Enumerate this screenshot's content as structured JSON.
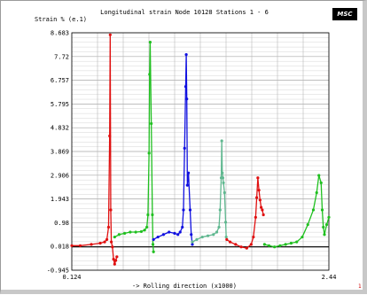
{
  "chart_data": {
    "type": "line",
    "title": "Longitudinal strain Node 10128 Stations 1 - 6",
    "ylabel": "Strain % (e.1)",
    "xlabel": "-> Rolling direction (x1000)",
    "logo_text": "MSC",
    "corner_mark": "1",
    "xlim": [
      0.124,
      2.44
    ],
    "ylim": [
      -0.945,
      8.683
    ],
    "x_tick_labels": [
      "0.124",
      "2.44"
    ],
    "y_ticks": [
      8.683,
      7.72,
      6.757,
      5.795,
      4.832,
      3.869,
      2.906,
      1.943,
      0.98,
      0.018,
      -0.945
    ],
    "grid": true,
    "series": [
      {
        "color": "#e01010",
        "x": [
          0.124,
          0.2,
          0.3,
          0.38,
          0.42,
          0.44,
          0.455,
          0.465,
          0.47,
          0.475,
          0.48,
          0.49,
          0.5,
          0.51,
          0.52,
          0.53
        ],
        "y": [
          0.05,
          0.05,
          0.1,
          0.15,
          0.2,
          0.3,
          0.8,
          4.5,
          8.6,
          1.5,
          0.2,
          0.0,
          -0.5,
          -0.7,
          -0.55,
          -0.4
        ]
      },
      {
        "color": "#20c020",
        "x": [
          0.51,
          0.55,
          0.6,
          0.65,
          0.7,
          0.75,
          0.78,
          0.8,
          0.81,
          0.82,
          0.825,
          0.83,
          0.84,
          0.85,
          0.855,
          0.86
        ],
        "y": [
          0.4,
          0.5,
          0.55,
          0.6,
          0.6,
          0.62,
          0.68,
          0.8,
          1.3,
          3.8,
          7.0,
          8.3,
          5.0,
          1.3,
          0.1,
          -0.2
        ]
      },
      {
        "color": "#1010e0",
        "x": [
          0.86,
          0.9,
          0.95,
          1.0,
          1.05,
          1.08,
          1.1,
          1.12,
          1.13,
          1.14,
          1.15,
          1.155,
          1.16,
          1.165,
          1.175,
          1.19,
          1.2,
          1.21
        ],
        "y": [
          0.3,
          0.4,
          0.5,
          0.6,
          0.55,
          0.5,
          0.6,
          0.8,
          1.5,
          4.0,
          6.5,
          7.8,
          6.0,
          2.5,
          3.0,
          1.5,
          0.5,
          0.1
        ]
      },
      {
        "color": "#60b890",
        "x": [
          1.21,
          1.25,
          1.3,
          1.35,
          1.4,
          1.43,
          1.45,
          1.46,
          1.47,
          1.475,
          1.48,
          1.485,
          1.49,
          1.5,
          1.51,
          1.515
        ],
        "y": [
          0.2,
          0.3,
          0.4,
          0.45,
          0.5,
          0.6,
          0.8,
          1.5,
          2.8,
          4.3,
          3.0,
          2.8,
          2.6,
          2.2,
          1.0,
          0.4
        ]
      },
      {
        "color": "#e01010",
        "x": [
          1.52,
          1.55,
          1.6,
          1.65,
          1.7,
          1.74,
          1.76,
          1.78,
          1.79,
          1.8,
          1.81,
          1.82,
          1.83,
          1.84,
          1.85
        ],
        "y": [
          0.3,
          0.2,
          0.1,
          0.0,
          -0.05,
          0.1,
          0.4,
          1.2,
          2.0,
          2.8,
          2.3,
          1.9,
          1.6,
          1.5,
          1.3
        ]
      },
      {
        "color": "#20c020",
        "x": [
          1.86,
          1.9,
          1.95,
          2.0,
          2.05,
          2.1,
          2.15,
          2.2,
          2.25,
          2.3,
          2.33,
          2.35,
          2.37,
          2.38,
          2.39,
          2.4,
          2.42,
          2.44
        ],
        "y": [
          0.1,
          0.05,
          0.0,
          0.05,
          0.1,
          0.15,
          0.2,
          0.4,
          0.9,
          1.5,
          2.2,
          2.9,
          2.6,
          1.5,
          0.8,
          0.5,
          0.9,
          1.2
        ]
      }
    ]
  }
}
